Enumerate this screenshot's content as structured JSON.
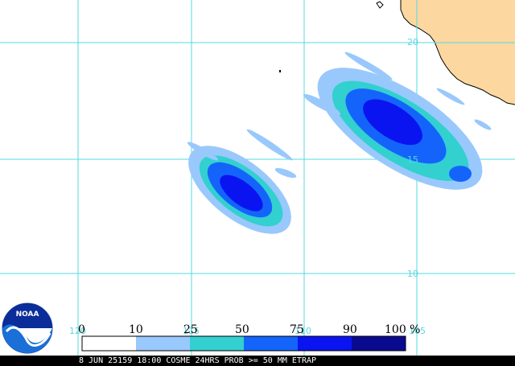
{
  "map": {
    "lat_labels": [
      "20",
      "15",
      "10"
    ],
    "lon_labels_bottom": [
      "120",
      "115",
      "110",
      "105"
    ],
    "colors": {
      "land": "#fcd8a0",
      "grid": "#55d8e0",
      "band_10": "#99c8fc",
      "band_25": "#33d0d0",
      "band_50": "#1464fc",
      "band_75": "#0a14f0",
      "band_90": "#0a0a90"
    }
  },
  "legend": {
    "labels": [
      "0",
      "10",
      "25",
      "50",
      "75",
      "90",
      "100 %"
    ],
    "colors": [
      "#ffffff",
      "#99c8fc",
      "#33d0d0",
      "#1464fc",
      "#0a14f0",
      "#0a0a90"
    ]
  },
  "logo": {
    "text": "NOAA"
  },
  "footer": {
    "caption": "8 JUN 25159 18:00 COSME 24HRS PROB >= 50 MM ETRAP"
  }
}
